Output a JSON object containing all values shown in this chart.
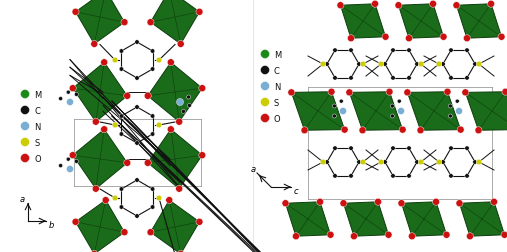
{
  "figure_width": 5.07,
  "figure_height": 2.53,
  "dpi": 100,
  "background_color": "#ffffff",
  "legend_items": [
    {
      "label": "M",
      "color": "#1a8a1a"
    },
    {
      "label": "C",
      "color": "#111111"
    },
    {
      "label": "N",
      "color": "#7aaed4"
    },
    {
      "label": "S",
      "color": "#cccc00"
    },
    {
      "label": "O",
      "color": "#cc1111"
    }
  ],
  "oct_color_face": "#1a6b1a",
  "oct_color_edge": "#0d3d0d",
  "oct_color_line": "#0a300a",
  "red": "#cc1111",
  "black": "#111111",
  "blue": "#7aaed4",
  "yellow": "#cccc00",
  "green": "#1a8a1a"
}
